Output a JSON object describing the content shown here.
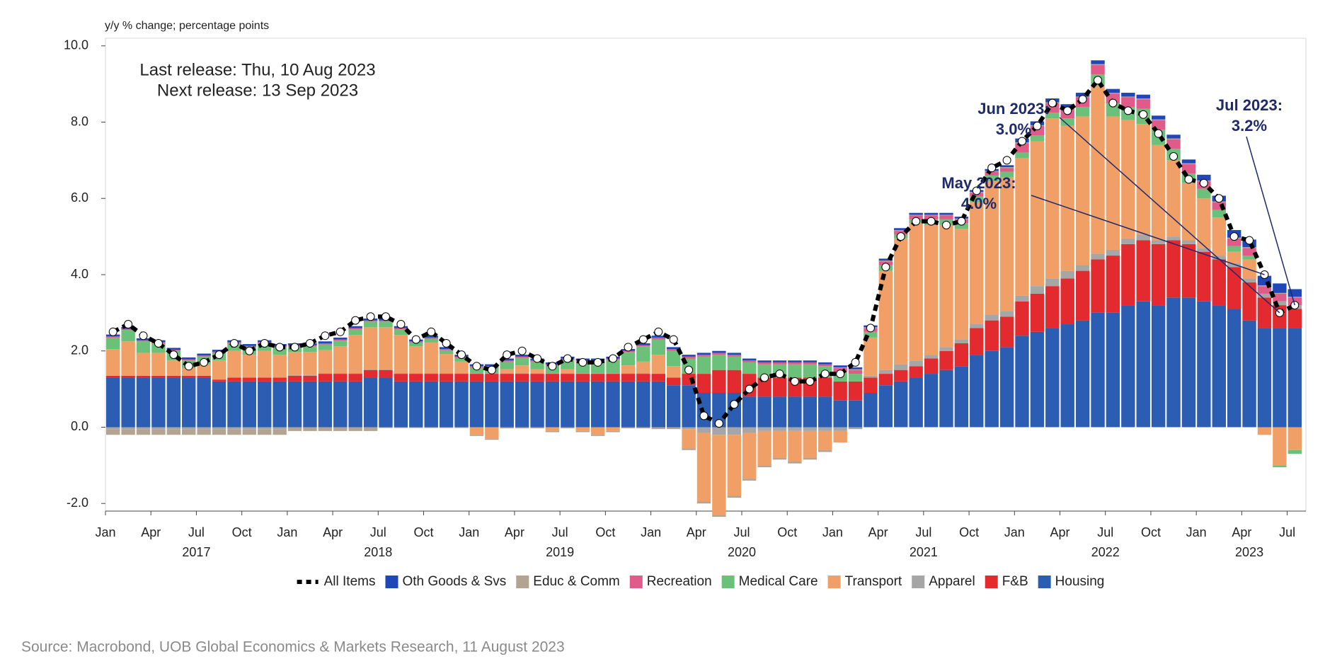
{
  "chart_data": {
    "type": "bar",
    "y_axis_label": "y/y % change; percentage points",
    "release_notes": [
      "Last release: Thu, 10 Aug 2023",
      "Next release: 13 Sep 2023"
    ],
    "source": "Source: Macrobond, UOB Global Economics & Markets Research, 11 August 2023",
    "annotations": [
      {
        "lines": [
          "Jun 2023:",
          "3.0%"
        ]
      },
      {
        "lines": [
          "May 2023:",
          "4.0%"
        ]
      },
      {
        "lines": [
          "Jul 2023:",
          "3.2%"
        ]
      }
    ],
    "categories": [
      "Jan",
      null,
      null,
      "Apr",
      null,
      null,
      "Jul",
      null,
      null,
      "Oct",
      null,
      null,
      "Jan",
      null,
      null,
      "Apr",
      null,
      null,
      "Jul",
      null,
      null,
      "Oct",
      null,
      null,
      "Jan",
      null,
      null,
      "Apr",
      null,
      null,
      "Jul",
      null,
      null,
      "Oct",
      null,
      null,
      "Jan",
      null,
      null,
      "Apr",
      null,
      null,
      "Jul",
      null,
      null,
      "Oct",
      null,
      null,
      "Jan",
      null,
      null,
      "Apr",
      null,
      null,
      "Jul",
      null,
      null,
      "Oct",
      null,
      null,
      "Jan",
      null,
      null,
      "Apr",
      null,
      null,
      "Jul",
      null,
      null,
      "Oct",
      null,
      null,
      "Jan",
      null,
      null,
      "Apr",
      null,
      null,
      "Jul"
    ],
    "years": [
      "2017",
      "2018",
      "2019",
      "2020",
      "2021",
      "2022",
      "2023"
    ],
    "ylim": [
      -2.2,
      10.2
    ],
    "yticks": [
      {
        "value": -2,
        "label": "-2.0"
      },
      {
        "value": 0,
        "label": "0.0"
      },
      {
        "value": 2,
        "label": "2.0"
      },
      {
        "value": 4,
        "label": "4.0"
      },
      {
        "value": 6,
        "label": "6.0"
      },
      {
        "value": 8,
        "label": "8.0"
      },
      {
        "value": 10,
        "label": "10.0"
      }
    ],
    "grid": false,
    "legend": "bottom",
    "series": [
      {
        "name": "All Items",
        "type": "line",
        "color": "#000000",
        "values": [
          2.5,
          2.7,
          2.4,
          2.2,
          1.9,
          1.6,
          1.7,
          1.9,
          2.2,
          2.0,
          2.2,
          2.1,
          2.1,
          2.2,
          2.4,
          2.5,
          2.8,
          2.9,
          2.9,
          2.7,
          2.3,
          2.5,
          2.2,
          1.9,
          1.6,
          1.5,
          1.9,
          2.0,
          1.8,
          1.6,
          1.8,
          1.7,
          1.7,
          1.8,
          2.1,
          2.3,
          2.5,
          2.3,
          1.5,
          0.3,
          0.1,
          0.6,
          1.0,
          1.3,
          1.4,
          1.2,
          1.2,
          1.4,
          1.4,
          1.7,
          2.6,
          4.2,
          5.0,
          5.4,
          5.4,
          5.3,
          5.4,
          6.2,
          6.8,
          7.0,
          7.5,
          7.9,
          8.5,
          8.3,
          8.6,
          9.1,
          8.5,
          8.3,
          8.2,
          7.7,
          7.1,
          6.5,
          6.4,
          6.0,
          5.0,
          4.9,
          4.0,
          3.0,
          3.2
        ]
      },
      {
        "name": "Oth Goods & Svs",
        "color": "#1f47b8",
        "values": [
          0.05,
          0.05,
          0.05,
          0.05,
          0.05,
          0.05,
          0.05,
          0.05,
          0.05,
          0.05,
          0.05,
          0.05,
          0.05,
          0.05,
          0.05,
          0.05,
          0.05,
          0.05,
          0.05,
          0.05,
          0.05,
          0.05,
          0.05,
          0.05,
          0.05,
          0.05,
          0.05,
          0.05,
          0.05,
          0.05,
          0.05,
          0.05,
          0.05,
          0.05,
          0.05,
          0.05,
          0.05,
          0.05,
          0.05,
          0.05,
          0.05,
          0.05,
          0.05,
          0.05,
          0.05,
          0.05,
          0.05,
          0.05,
          0.05,
          0.05,
          0.05,
          0.05,
          0.05,
          0.05,
          0.05,
          0.05,
          0.05,
          0.05,
          0.05,
          0.05,
          0.1,
          0.1,
          0.1,
          0.1,
          0.1,
          0.1,
          0.1,
          0.1,
          0.1,
          0.1,
          0.1,
          0.1,
          0.15,
          0.15,
          0.2,
          0.2,
          0.25,
          0.25,
          0.2
        ]
      },
      {
        "name": "Educ & Comm",
        "color": "#b3a393",
        "values": [
          -0.15,
          -0.15,
          -0.15,
          -0.15,
          -0.15,
          -0.15,
          -0.15,
          -0.15,
          -0.15,
          -0.15,
          -0.15,
          -0.15,
          -0.1,
          -0.1,
          -0.1,
          -0.1,
          -0.1,
          -0.1,
          -0.02,
          -0.02,
          -0.02,
          -0.02,
          -0.02,
          -0.02,
          -0.03,
          -0.03,
          -0.03,
          -0.03,
          -0.03,
          -0.03,
          -0.03,
          -0.03,
          -0.03,
          -0.03,
          -0.03,
          -0.03,
          -0.05,
          -0.05,
          -0.05,
          -0.05,
          -0.05,
          -0.05,
          -0.05,
          -0.05,
          -0.05,
          -0.05,
          -0.05,
          -0.05,
          0.02,
          0.02,
          0.02,
          0.02,
          0.02,
          0.02,
          0.02,
          0.02,
          0.02,
          0.02,
          0.02,
          0.02,
          0.02,
          0.02,
          0.02,
          0.02,
          0.02,
          0.02,
          0.02,
          0.02,
          0.02,
          0.02,
          0.02,
          0.02,
          0.02,
          0.02,
          0.02,
          0.02,
          0.02,
          0.02,
          0.02
        ]
      },
      {
        "name": "Recreation",
        "color": "#e05a8a",
        "values": [
          0.03,
          0.03,
          0.03,
          0.03,
          0.03,
          0.03,
          0.03,
          0.03,
          0.03,
          0.03,
          0.03,
          0.03,
          0.03,
          0.03,
          0.03,
          0.03,
          0.03,
          0.03,
          0.03,
          0.03,
          0.03,
          0.03,
          0.03,
          0.03,
          0.03,
          0.03,
          0.03,
          0.03,
          0.03,
          0.03,
          0.03,
          0.03,
          0.03,
          0.03,
          0.03,
          0.03,
          0.05,
          0.05,
          0.05,
          0.05,
          0.05,
          0.05,
          0.05,
          0.05,
          0.05,
          0.05,
          0.05,
          0.05,
          0.1,
          0.1,
          0.1,
          0.1,
          0.1,
          0.1,
          0.1,
          0.1,
          0.1,
          0.1,
          0.1,
          0.1,
          0.25,
          0.25,
          0.25,
          0.25,
          0.25,
          0.25,
          0.25,
          0.25,
          0.25,
          0.25,
          0.25,
          0.25,
          0.2,
          0.2,
          0.2,
          0.2,
          0.2,
          0.2,
          0.2
        ]
      },
      {
        "name": "Medical Care",
        "color": "#6cc17a",
        "values": [
          0.3,
          0.3,
          0.3,
          0.25,
          0.25,
          0.2,
          0.2,
          0.2,
          0.2,
          0.2,
          0.2,
          0.2,
          0.15,
          0.15,
          0.15,
          0.15,
          0.15,
          0.15,
          0.15,
          0.15,
          0.1,
          0.1,
          0.1,
          0.1,
          0.15,
          0.15,
          0.2,
          0.2,
          0.2,
          0.2,
          0.25,
          0.3,
          0.3,
          0.35,
          0.35,
          0.4,
          0.4,
          0.4,
          0.4,
          0.45,
          0.4,
          0.35,
          0.3,
          0.35,
          0.35,
          0.35,
          0.35,
          0.3,
          0.25,
          0.2,
          0.15,
          0.15,
          0.1,
          0.1,
          0.15,
          0.15,
          0.15,
          0.15,
          0.15,
          0.15,
          0.15,
          0.15,
          0.15,
          0.2,
          0.25,
          0.3,
          0.35,
          0.35,
          0.4,
          0.4,
          0.3,
          0.25,
          0.25,
          0.2,
          0.15,
          0.1,
          0.0,
          -0.05,
          -0.1
        ]
      },
      {
        "name": "Transport",
        "color": "#f0a066",
        "values": [
          0.7,
          0.9,
          0.6,
          0.6,
          0.4,
          0.2,
          0.3,
          0.5,
          0.7,
          0.6,
          0.7,
          0.6,
          0.6,
          0.6,
          0.6,
          0.7,
          1.0,
          1.1,
          1.1,
          1.0,
          0.7,
          0.8,
          0.5,
          0.3,
          -0.2,
          -0.3,
          0.1,
          0.2,
          0.1,
          -0.1,
          0.1,
          -0.1,
          -0.2,
          -0.1,
          0.2,
          0.3,
          0.5,
          0.3,
          -0.5,
          -1.8,
          -2.1,
          -1.6,
          -1.2,
          -0.9,
          -0.7,
          -0.8,
          -0.7,
          -0.5,
          -0.3,
          0.0,
          1.0,
          2.6,
          3.3,
          3.6,
          3.4,
          3.2,
          2.9,
          3.2,
          3.5,
          3.5,
          3.6,
          3.8,
          4.2,
          3.8,
          3.9,
          4.4,
          3.5,
          3.1,
          2.9,
          2.5,
          2.0,
          1.5,
          1.3,
          1.0,
          0.3,
          0.5,
          -0.2,
          -1.0,
          -0.6
        ]
      },
      {
        "name": "Apparel",
        "color": "#a6a6a6",
        "values": [
          -0.05,
          -0.05,
          -0.05,
          -0.05,
          -0.05,
          -0.05,
          -0.05,
          -0.05,
          -0.05,
          -0.05,
          -0.05,
          -0.05,
          0.02,
          0.02,
          0.02,
          0.02,
          0.02,
          0.02,
          0.02,
          0.02,
          0.02,
          0.02,
          0.02,
          0.02,
          0.02,
          0.02,
          0.02,
          0.02,
          0.02,
          0.02,
          0.02,
          0.02,
          0.02,
          0.02,
          0.02,
          0.02,
          0.0,
          0.0,
          -0.05,
          -0.15,
          -0.2,
          -0.2,
          -0.15,
          -0.1,
          -0.1,
          -0.1,
          -0.1,
          -0.1,
          -0.1,
          -0.05,
          0.05,
          0.1,
          0.15,
          0.15,
          0.1,
          0.1,
          0.1,
          0.1,
          0.15,
          0.15,
          0.15,
          0.2,
          0.2,
          0.2,
          0.15,
          0.15,
          0.15,
          0.15,
          0.15,
          0.1,
          0.1,
          0.1,
          0.1,
          0.1,
          0.1,
          0.1,
          0.1,
          0.1,
          0.1
        ]
      },
      {
        "name": "F&B",
        "color": "#e32b2f",
        "values": [
          0.05,
          0.05,
          0.05,
          0.05,
          0.05,
          0.05,
          0.05,
          0.05,
          0.1,
          0.1,
          0.1,
          0.1,
          0.15,
          0.15,
          0.2,
          0.2,
          0.2,
          0.2,
          0.2,
          0.2,
          0.2,
          0.2,
          0.2,
          0.2,
          0.2,
          0.2,
          0.2,
          0.2,
          0.2,
          0.2,
          0.2,
          0.2,
          0.2,
          0.2,
          0.2,
          0.2,
          0.2,
          0.2,
          0.3,
          0.5,
          0.6,
          0.6,
          0.6,
          0.5,
          0.5,
          0.5,
          0.5,
          0.5,
          0.5,
          0.5,
          0.4,
          0.3,
          0.3,
          0.3,
          0.4,
          0.5,
          0.6,
          0.7,
          0.8,
          0.8,
          0.9,
          1.0,
          1.1,
          1.2,
          1.3,
          1.4,
          1.5,
          1.6,
          1.6,
          1.6,
          1.5,
          1.4,
          1.3,
          1.2,
          1.1,
          1.0,
          0.8,
          0.6,
          0.5
        ]
      },
      {
        "name": "Housing",
        "color": "#2b5db2",
        "values": [
          1.3,
          1.3,
          1.3,
          1.3,
          1.3,
          1.3,
          1.3,
          1.2,
          1.2,
          1.2,
          1.2,
          1.2,
          1.2,
          1.2,
          1.2,
          1.2,
          1.2,
          1.3,
          1.3,
          1.2,
          1.2,
          1.2,
          1.2,
          1.2,
          1.2,
          1.2,
          1.2,
          1.2,
          1.2,
          1.2,
          1.2,
          1.2,
          1.2,
          1.2,
          1.2,
          1.2,
          1.2,
          1.1,
          1.1,
          0.9,
          0.9,
          0.9,
          0.8,
          0.8,
          0.8,
          0.8,
          0.8,
          0.8,
          0.7,
          0.7,
          0.9,
          1.1,
          1.2,
          1.3,
          1.4,
          1.5,
          1.6,
          1.9,
          2.0,
          2.1,
          2.4,
          2.5,
          2.6,
          2.7,
          2.8,
          3.0,
          3.0,
          3.2,
          3.3,
          3.2,
          3.4,
          3.4,
          3.3,
          3.2,
          3.1,
          2.8,
          2.6,
          2.6,
          2.6
        ]
      }
    ]
  }
}
